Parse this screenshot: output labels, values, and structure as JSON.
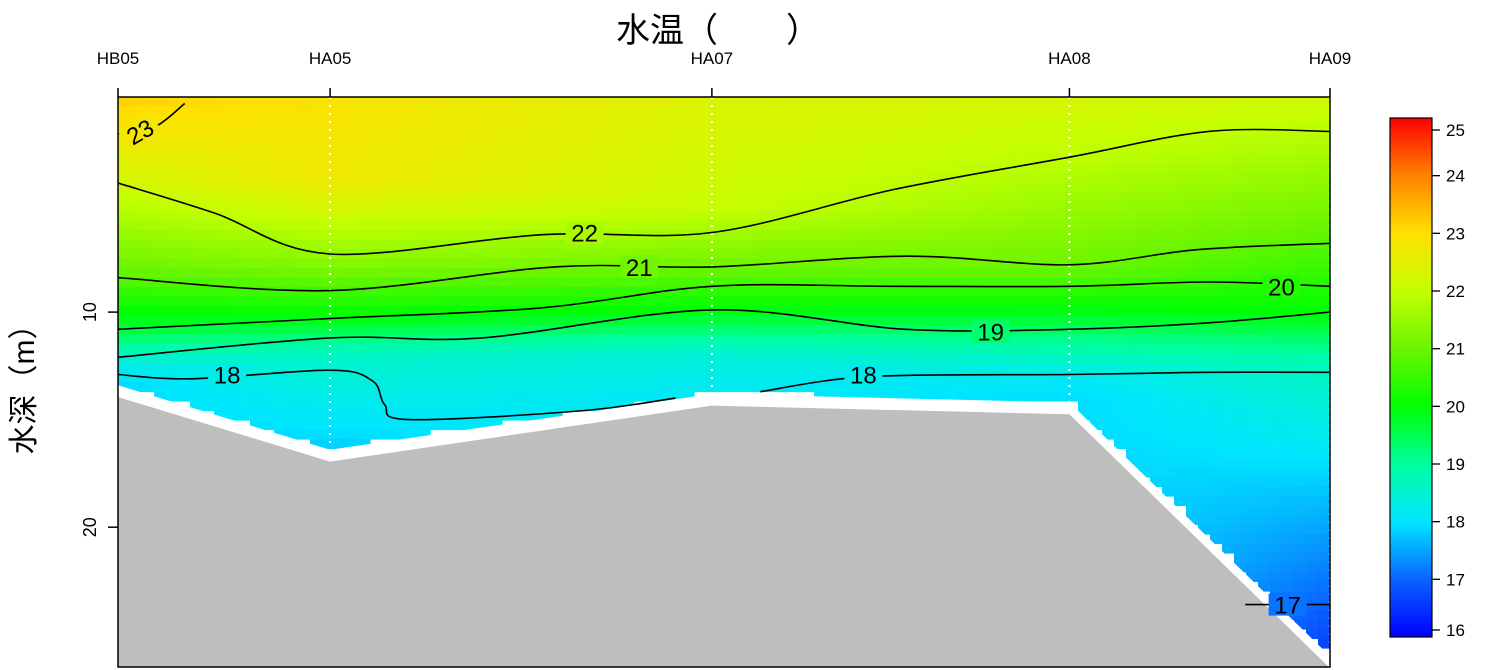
{
  "chart_data": {
    "type": "contour-section",
    "title": "水温（　　）",
    "ylabel": "水深（m）",
    "stations": [
      "HB05",
      "HA05",
      "HA07",
      "HA08",
      "HA09"
    ],
    "station_positions": [
      0,
      1.75,
      4.9,
      7.85,
      10
    ],
    "x_range": [
      0,
      10
    ],
    "y_range": [
      26.5,
      0
    ],
    "y_ticks": [
      {
        "value": 10,
        "label": "10"
      },
      {
        "value": 20,
        "label": "20"
      }
    ],
    "bottom_depth": [
      13.4,
      16.4,
      13.8,
      14.2,
      26
    ],
    "temperature_profiles": [
      {
        "station": "HB05",
        "depth": [
          0,
          4,
          8,
          11,
          12.5,
          13.4
        ],
        "temp": [
          23.2,
          22.2,
          21,
          19.5,
          18.2,
          17.9
        ]
      },
      {
        "station": "HA05",
        "depth": [
          0,
          4,
          8,
          10.5,
          12,
          16.4
        ],
        "temp": [
          22.9,
          22.7,
          21.2,
          19.8,
          18.6,
          17.8
        ]
      },
      {
        "station": "HA07",
        "depth": [
          0,
          5,
          8,
          10,
          12,
          13.8
        ],
        "temp": [
          22.4,
          22.1,
          21,
          19.9,
          18.4,
          18.1
        ]
      },
      {
        "station": "HA08",
        "depth": [
          0,
          3,
          8,
          11,
          13,
          14.2
        ],
        "temp": [
          22.3,
          21.9,
          21,
          19.3,
          18.1,
          17.9
        ]
      },
      {
        "station": "HA09",
        "depth": [
          0,
          1.5,
          6.5,
          10,
          12.5,
          18,
          26
        ],
        "temp": [
          22.2,
          21.9,
          20.9,
          20.0,
          18.7,
          17.8,
          16.6
        ]
      }
    ],
    "contours": [
      {
        "level": 23,
        "label": "23",
        "points": [
          [
            0,
            1.7
          ],
          [
            0.3,
            1.4
          ],
          [
            0.55,
            0.3
          ]
        ]
      },
      {
        "level": 22,
        "label": "22",
        "points": [
          [
            0,
            4
          ],
          [
            0.8,
            5.4
          ],
          [
            1.75,
            7.3
          ],
          [
            3.5,
            6.4
          ],
          [
            4.9,
            6.3
          ],
          [
            6.4,
            4.3
          ],
          [
            7.85,
            2.8
          ],
          [
            9,
            1.6
          ],
          [
            10,
            1.6
          ]
        ]
      },
      {
        "level": 21,
        "label": "21",
        "points": [
          [
            0,
            8.4
          ],
          [
            1.75,
            9.0
          ],
          [
            3.6,
            7.9
          ],
          [
            4.9,
            7.9
          ],
          [
            6.5,
            7.4
          ],
          [
            7.85,
            7.8
          ],
          [
            8.9,
            7.1
          ],
          [
            10,
            6.8
          ]
        ]
      },
      {
        "level": 20,
        "label": "20",
        "points": [
          [
            0,
            10.8
          ],
          [
            1.75,
            10.3
          ],
          [
            3.5,
            9.8
          ],
          [
            4.9,
            8.8
          ],
          [
            6.4,
            8.8
          ],
          [
            7.85,
            8.8
          ],
          [
            9,
            8.6
          ],
          [
            10,
            8.8
          ]
        ]
      },
      {
        "level": 19,
        "label": "19",
        "points": [
          [
            0,
            12.1
          ],
          [
            1.75,
            11.2
          ],
          [
            3,
            11.2
          ],
          [
            4.9,
            9.9
          ],
          [
            6.5,
            10.8
          ],
          [
            7.85,
            10.8
          ],
          [
            9,
            10.5
          ],
          [
            10,
            10.0
          ]
        ]
      },
      {
        "level": 18,
        "label": "18",
        "points": [
          [
            0,
            12.9
          ],
          [
            0.6,
            13.1
          ],
          [
            1.75,
            12.7
          ],
          [
            2.1,
            13.2
          ],
          [
            2.2,
            14.3
          ],
          [
            2.4,
            15.0
          ],
          [
            3.8,
            14.6
          ],
          [
            4.6,
            14.0
          ]
        ]
      },
      {
        "level": 18,
        "label": "18",
        "points": [
          [
            5.3,
            13.7
          ],
          [
            6.2,
            13.0
          ],
          [
            7.85,
            12.9
          ],
          [
            9,
            12.8
          ],
          [
            10,
            12.8
          ]
        ]
      },
      {
        "level": 17,
        "label": "17",
        "points": [
          [
            9.3,
            23.6
          ],
          [
            10,
            23.6
          ]
        ]
      }
    ],
    "contour_labels": [
      {
        "text": "23",
        "x": 0.18,
        "y": 1.6,
        "rotate": -30
      },
      {
        "text": "22",
        "x": 3.85,
        "y": 6.3
      },
      {
        "text": "21",
        "x": 4.3,
        "y": 7.9
      },
      {
        "text": "20",
        "x": 9.6,
        "y": 8.8
      },
      {
        "text": "19",
        "x": 7.2,
        "y": 10.9
      },
      {
        "text": "18",
        "x": 0.9,
        "y": 12.9
      },
      {
        "text": "18",
        "x": 6.15,
        "y": 12.9
      },
      {
        "text": "17",
        "x": 9.65,
        "y": 23.6
      }
    ],
    "colorbar": {
      "min": 16,
      "max": 25,
      "ticks": [
        "16",
        "17",
        "18",
        "19",
        "20",
        "21",
        "22",
        "23",
        "24",
        "25"
      ],
      "stops": [
        {
          "t": 16,
          "color": "#0000ff"
        },
        {
          "t": 17,
          "color": "#0a64ff"
        },
        {
          "t": 18,
          "color": "#00e6ff"
        },
        {
          "t": 19,
          "color": "#00ffa0"
        },
        {
          "t": 20,
          "color": "#00ff00"
        },
        {
          "t": 21,
          "color": "#6af500"
        },
        {
          "t": 22,
          "color": "#c4ff00"
        },
        {
          "t": 23,
          "color": "#ffe000"
        },
        {
          "t": 24,
          "color": "#ff8200"
        },
        {
          "t": 25,
          "color": "#ff0000"
        }
      ]
    },
    "colors": {
      "seabed": "#bebebe",
      "contour_line": "#000000",
      "station_line": "#ffffff"
    }
  }
}
